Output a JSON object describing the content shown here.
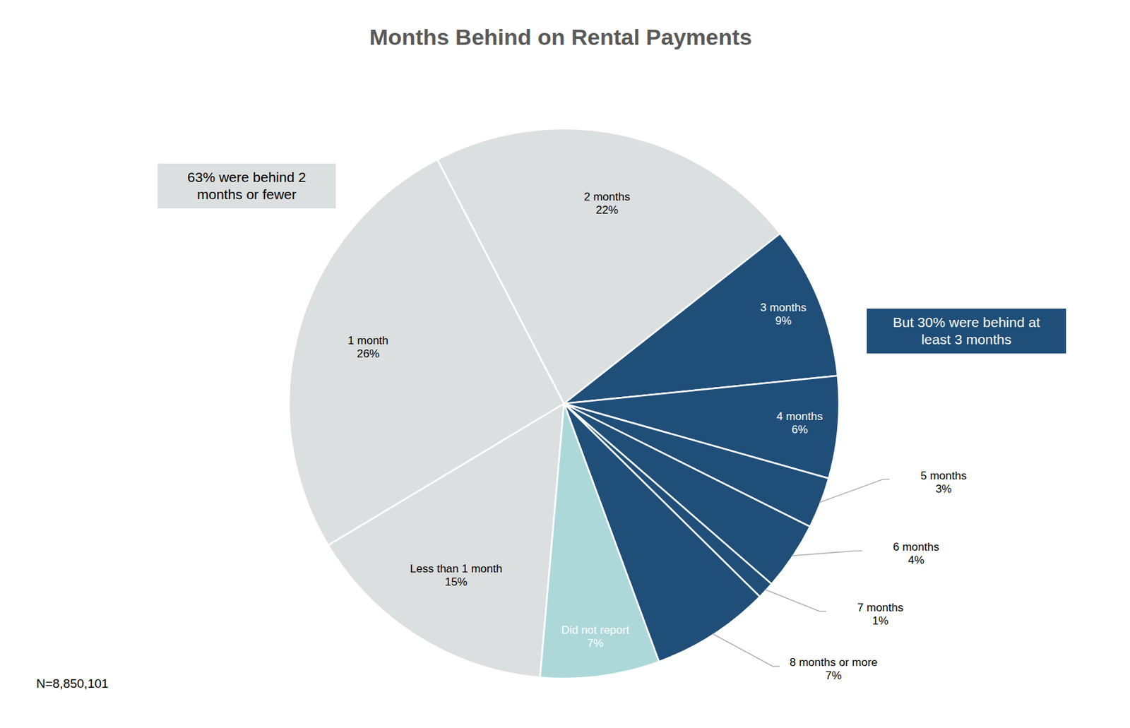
{
  "chart_data": {
    "type": "pie",
    "title": "Months Behind on Rental Payments",
    "categories": [
      "Less than 1 month",
      "1 month",
      "2 months",
      "3 months",
      "4 months",
      "5 months",
      "6 months",
      "7 months",
      "8 months or more",
      "Did not report"
    ],
    "values": [
      15,
      26,
      22,
      9,
      6,
      3,
      4,
      1,
      7,
      7
    ],
    "value_labels": [
      "15%",
      "26%",
      "22%",
      "9%",
      "6%",
      "3%",
      "4%",
      "1%",
      "7%",
      "7%"
    ],
    "colors": [
      "#dcdfdf",
      "#dcdfdf",
      "#dcdfdf",
      "#1f4e79",
      "#1f4e79",
      "#1f4e79",
      "#1f4e79",
      "#1f4e79",
      "#1f4e79",
      "#acd8da"
    ],
    "data_labels": true,
    "annotations": [
      "63% were behind 2 months or fewer",
      "But 30% were behind at least 3 months",
      "N=8,850,101"
    ]
  }
}
